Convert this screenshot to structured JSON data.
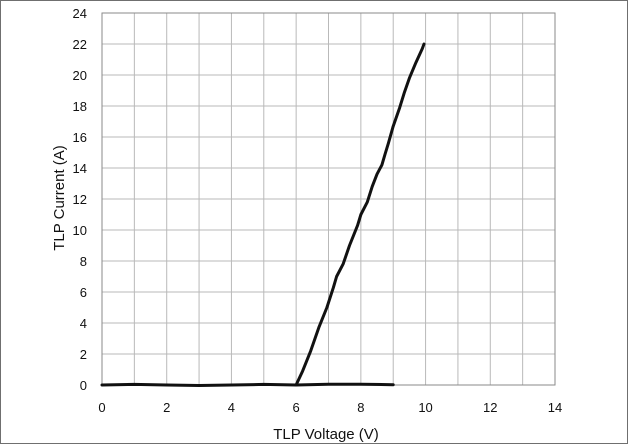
{
  "chart_data": {
    "type": "line",
    "title": "",
    "xlabel": "TLP Voltage (V)",
    "ylabel": "TLP Current (A)",
    "xlim": [
      0,
      14
    ],
    "ylim": [
      0,
      24
    ],
    "xticks": [
      0,
      2,
      4,
      6,
      8,
      10,
      12,
      14
    ],
    "yticks": [
      0,
      2,
      4,
      6,
      8,
      10,
      12,
      14,
      16,
      18,
      20,
      22,
      24
    ],
    "grid": true,
    "series": [
      {
        "color": "#111111",
        "points": [
          [
            0,
            0.0
          ],
          [
            1,
            0.04
          ],
          [
            2,
            0.0
          ],
          [
            3,
            -0.03
          ],
          [
            4,
            0.0
          ],
          [
            5,
            0.04
          ],
          [
            6,
            0.0
          ],
          [
            7,
            0.05
          ],
          [
            8,
            0.05
          ],
          [
            9,
            0.02
          ]
        ]
      },
      {
        "color": "#111111",
        "points": [
          [
            6.0,
            0.0
          ],
          [
            6.2,
            0.9
          ],
          [
            6.45,
            2.2
          ],
          [
            6.7,
            3.7
          ],
          [
            6.95,
            5.0
          ],
          [
            7.15,
            6.3
          ],
          [
            7.25,
            7.0
          ],
          [
            7.45,
            7.8
          ],
          [
            7.65,
            9.0
          ],
          [
            7.9,
            10.3
          ],
          [
            8.0,
            11.0
          ],
          [
            8.2,
            11.8
          ],
          [
            8.35,
            12.8
          ],
          [
            8.5,
            13.6
          ],
          [
            8.65,
            14.2
          ],
          [
            8.75,
            14.9
          ],
          [
            8.85,
            15.6
          ],
          [
            9.0,
            16.7
          ],
          [
            9.2,
            17.9
          ],
          [
            9.35,
            18.9
          ],
          [
            9.5,
            19.8
          ],
          [
            9.7,
            20.8
          ],
          [
            9.9,
            21.7
          ],
          [
            9.95,
            22.0
          ]
        ]
      }
    ]
  }
}
